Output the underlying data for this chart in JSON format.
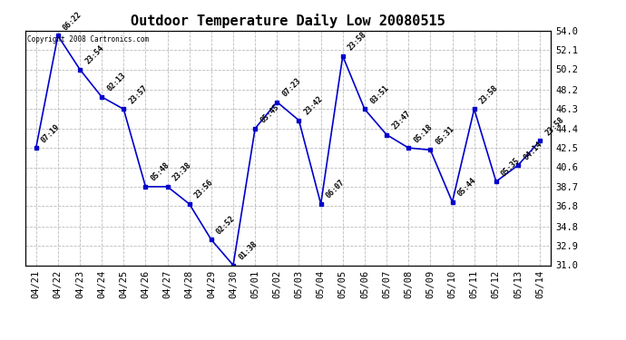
{
  "title": "Outdoor Temperature Daily Low 20080515",
  "copyright_text": "Copyright 2008 Cartronics.com",
  "dates": [
    "04/21",
    "04/22",
    "04/23",
    "04/24",
    "04/25",
    "04/26",
    "04/27",
    "04/28",
    "04/29",
    "04/30",
    "05/01",
    "05/02",
    "05/03",
    "05/04",
    "05/05",
    "05/06",
    "05/07",
    "05/08",
    "05/09",
    "05/10",
    "05/11",
    "05/12",
    "05/13",
    "05/14"
  ],
  "values": [
    42.5,
    53.5,
    50.2,
    47.5,
    46.3,
    38.7,
    38.7,
    37.0,
    33.5,
    31.0,
    44.4,
    47.0,
    45.2,
    37.0,
    51.5,
    46.3,
    43.8,
    42.5,
    42.3,
    37.2,
    46.3,
    39.2,
    40.8,
    43.2
  ],
  "labels": [
    "07:19",
    "06:22",
    "23:54",
    "02:13",
    "23:57",
    "05:48",
    "23:38",
    "23:56",
    "02:52",
    "01:38",
    "05:45",
    "07:23",
    "23:42",
    "06:07",
    "23:58",
    "03:51",
    "23:47",
    "05:18",
    "05:31",
    "05:44",
    "23:58",
    "05:35",
    "04:14",
    "23:58"
  ],
  "line_color": "#0000cc",
  "marker_color": "#0000cc",
  "bg_color": "#ffffff",
  "grid_color": "#bbbbbb",
  "ylim": [
    31.0,
    54.0
  ],
  "yticks": [
    31.0,
    32.9,
    34.8,
    36.8,
    38.7,
    40.6,
    42.5,
    44.4,
    46.3,
    48.2,
    50.2,
    52.1,
    54.0
  ],
  "title_fontsize": 11,
  "label_fontsize": 6,
  "tick_fontsize": 7.5
}
